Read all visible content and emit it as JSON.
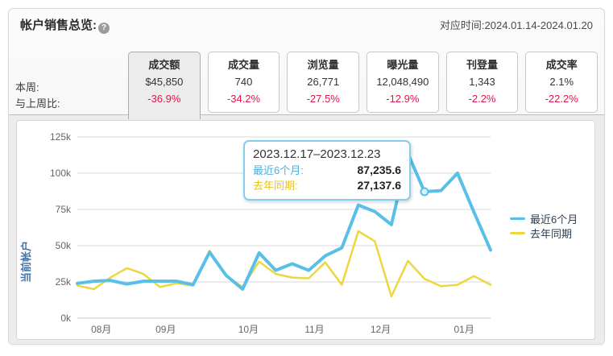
{
  "header": {
    "title": "帐户销售总览:",
    "help_icon": "?",
    "date_range": "对应时间:2024.01.14-2024.01.20"
  },
  "row_labels": {
    "this_week": "本周:",
    "vs_last_week": "与上周比:"
  },
  "metrics": [
    {
      "label": "成交额",
      "value": "$45,850",
      "delta": "-36.9%",
      "selected": true
    },
    {
      "label": "成交量",
      "value": "740",
      "delta": "-34.2%",
      "selected": false
    },
    {
      "label": "浏览量",
      "value": "26,771",
      "delta": "-27.5%",
      "selected": false
    },
    {
      "label": "曝光量",
      "value": "12,048,490",
      "delta": "-12.9%",
      "selected": false
    },
    {
      "label": "刊登量",
      "value": "1,343",
      "delta": "-2.2%",
      "selected": false
    },
    {
      "label": "成交率",
      "value": "2.1%",
      "delta": "-22.2%",
      "selected": false
    }
  ],
  "colors": {
    "accent_blue": "#58c0e8",
    "accent_yellow": "#edd73e",
    "negative": "#e2154d",
    "axis_title": "#4572a7",
    "tooltip_label_blue": "#4ab0dd",
    "tooltip_label_yellow": "#e5c424",
    "grid": "#d9d9d9",
    "axis_line": "#c5c5c5",
    "tick_text": "#666666"
  },
  "chart_data": {
    "type": "line",
    "title": "",
    "xlabel": "",
    "ylabel": "当前帐户",
    "ylim": [
      0,
      125000
    ],
    "grid": true,
    "legend_position": "right",
    "yticks": [
      "0k",
      "25k",
      "50k",
      "75k",
      "100k",
      "125k"
    ],
    "x_tick_labels": [
      "08月",
      "09月",
      "10月",
      "11月",
      "12月",
      "01月"
    ],
    "x_tick_indices": [
      1.45,
      5.35,
      10.35,
      14.35,
      18.35,
      23.4
    ],
    "series": [
      {
        "name": "最近6个月",
        "color": "#58c0e8",
        "values": [
          24000,
          25500,
          26000,
          23500,
          25500,
          25500,
          25500,
          23000,
          45500,
          29500,
          20000,
          45000,
          33000,
          37500,
          33000,
          43000,
          48500,
          78000,
          73500,
          64500,
          113500,
          87235.6,
          88000,
          100000,
          73000,
          47000
        ]
      },
      {
        "name": "去年同期",
        "color": "#edd73e",
        "values": [
          22500,
          20000,
          28000,
          34500,
          30500,
          21500,
          24000,
          22500,
          46500,
          29000,
          21500,
          39000,
          30500,
          28000,
          27500,
          38500,
          23000,
          60000,
          53000,
          15000,
          39500,
          27137.6,
          22000,
          23000,
          29000,
          23000
        ]
      }
    ],
    "tooltip": {
      "title": "2023.12.17–2023.12.23",
      "point_index": 21,
      "rows": [
        {
          "label": "最近6个月:",
          "value": "87,235.6"
        },
        {
          "label": "去年同期:",
          "value": "27,137.6"
        }
      ]
    }
  }
}
